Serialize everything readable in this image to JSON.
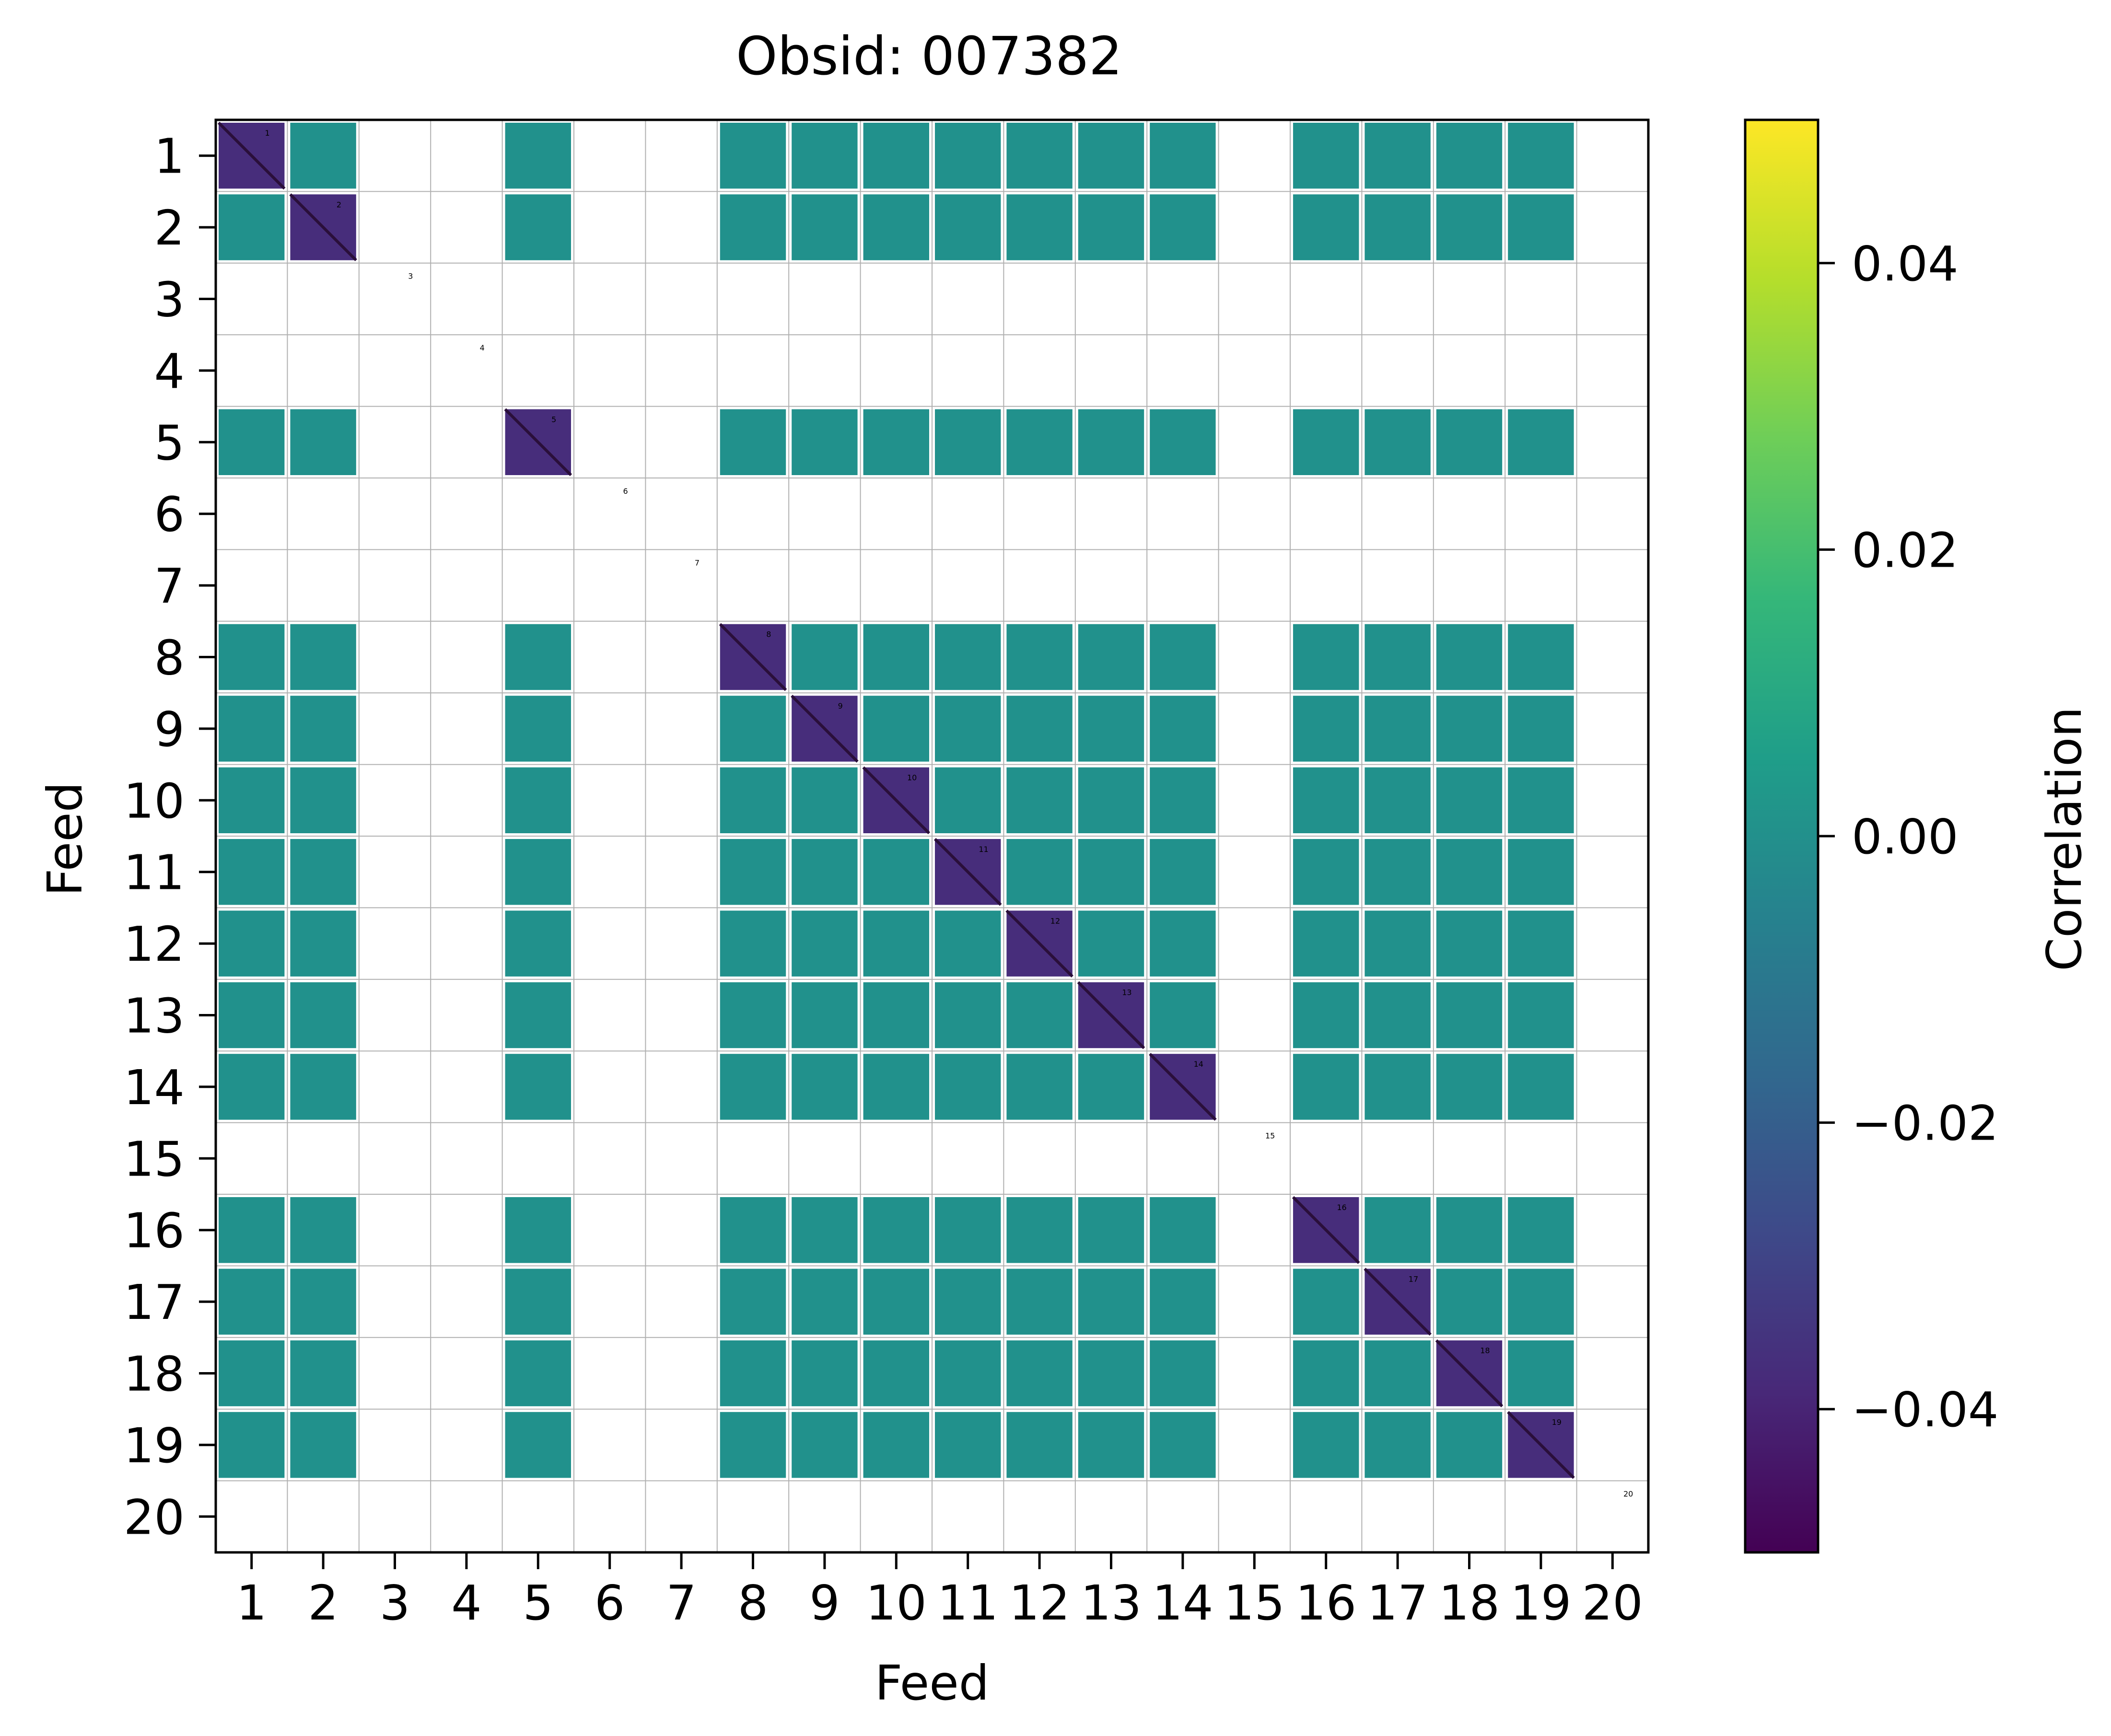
{
  "chart_data": {
    "type": "heatmap",
    "title": "Obsid: 007382",
    "xlabel": "Feed",
    "ylabel": "Feed",
    "x_ticks": [
      "1",
      "2",
      "3",
      "4",
      "5",
      "6",
      "7",
      "8",
      "9",
      "10",
      "11",
      "12",
      "13",
      "14",
      "15",
      "16",
      "17",
      "18",
      "19",
      "20"
    ],
    "y_ticks": [
      "1",
      "2",
      "3",
      "4",
      "5",
      "6",
      "7",
      "8",
      "9",
      "10",
      "11",
      "12",
      "13",
      "14",
      "15",
      "16",
      "17",
      "18",
      "19",
      "20"
    ],
    "feeds": 20,
    "masked_feeds": [
      3,
      4,
      6,
      7,
      15,
      20
    ],
    "diagonal_labels": [
      "1",
      "2",
      "3",
      "4",
      "5",
      "6",
      "7",
      "8",
      "9",
      "10",
      "11",
      "12",
      "13",
      "14",
      "15",
      "16",
      "17",
      "18",
      "19",
      "20"
    ],
    "fill_value": 0.0,
    "diagonal_value": -0.05,
    "colorbar": {
      "label": "Correlation",
      "vmin": -0.05,
      "vmax": 0.05,
      "ticks": [
        -0.04,
        -0.02,
        0.0,
        0.02,
        0.04
      ],
      "tick_labels": [
        "−0.04",
        "−0.02",
        "0.00",
        "0.02",
        "0.04"
      ],
      "colormap": "viridis"
    }
  },
  "colors": {
    "fill": "#21918c",
    "diagonal": "#472d7b",
    "grid": "#b0b0b0",
    "viridis_stops": [
      "#440154",
      "#482878",
      "#3e4989",
      "#31688e",
      "#26828e",
      "#1f9e89",
      "#35b779",
      "#6ece58",
      "#b5de2b",
      "#fde725"
    ]
  }
}
